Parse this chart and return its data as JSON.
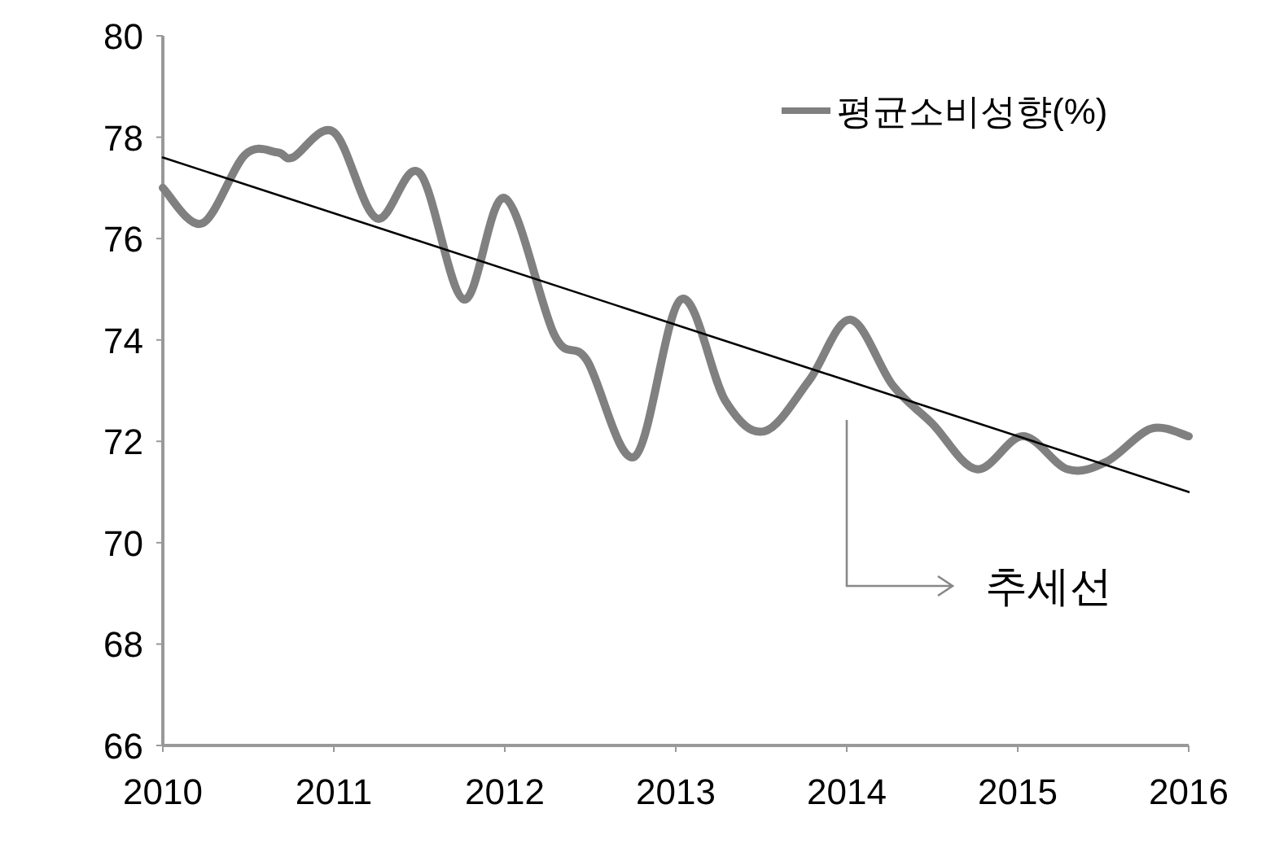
{
  "chart_data": {
    "type": "line",
    "xlim": [
      2010,
      2016
    ],
    "xticks": [
      2010,
      2011,
      2012,
      2013,
      2014,
      2015,
      2016
    ],
    "ylim": [
      66,
      80
    ],
    "yticks": [
      66,
      68,
      70,
      72,
      74,
      76,
      78,
      80
    ],
    "grid": false,
    "legend": "top right",
    "marker": "none",
    "line_style": "solid",
    "series": [
      {
        "name": "평균소비성향(%)",
        "color": "#808080",
        "x": [
          2010.0,
          2010.23,
          2010.48,
          2010.67,
          2010.76,
          2011.0,
          2011.25,
          2011.5,
          2011.76,
          2012.0,
          2012.29,
          2012.48,
          2012.76,
          2013.03,
          2013.29,
          2013.52,
          2013.78,
          2014.02,
          2014.27,
          2014.5,
          2014.76,
          2015.03,
          2015.29,
          2015.52,
          2015.78,
          2016.0
        ],
        "values": [
          77.0,
          76.3,
          77.65,
          77.7,
          77.6,
          78.1,
          76.4,
          77.3,
          74.8,
          76.8,
          74.1,
          73.6,
          71.7,
          74.8,
          72.8,
          72.2,
          73.2,
          74.4,
          73.1,
          72.35,
          71.45,
          72.1,
          71.45,
          71.6,
          72.25,
          72.1
        ]
      },
      {
        "color": "#000000",
        "x": [
          2010,
          2016
        ],
        "values": [
          77.6,
          71.0
        ]
      }
    ],
    "annotations": [
      "추세선"
    ]
  }
}
